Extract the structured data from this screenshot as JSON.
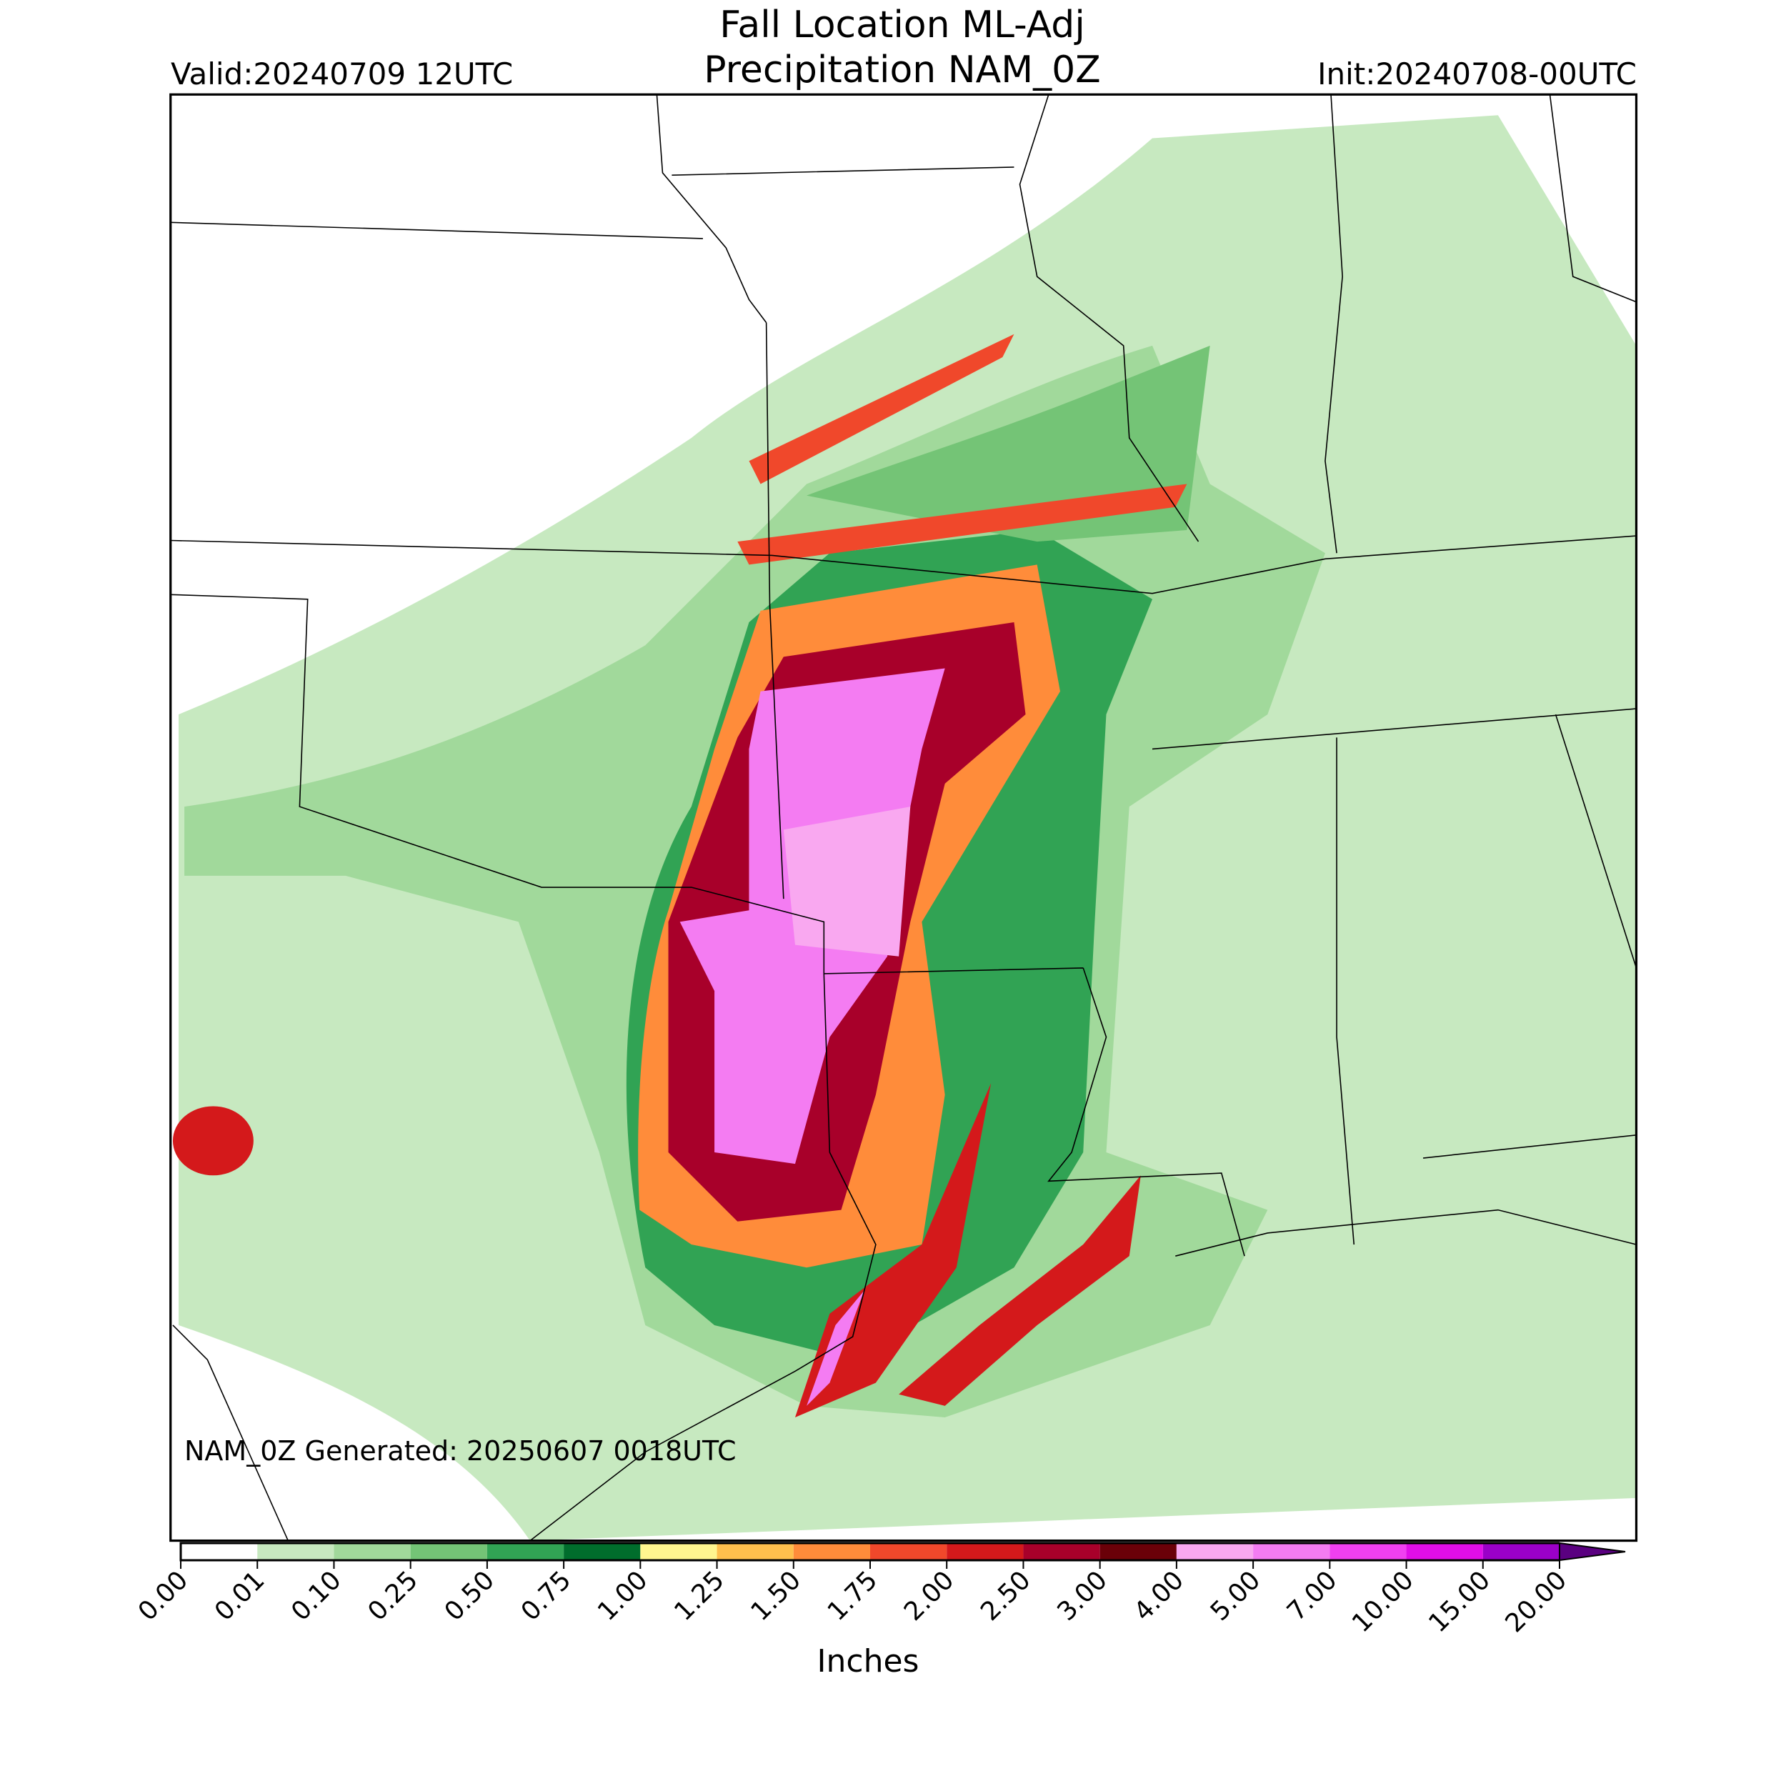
{
  "header": {
    "title": [
      "Fall Location ML-Adj",
      "Precipitation NAM_0Z"
    ],
    "valid": "Valid:20240709 12UTC",
    "init": "Init:20240708-00UTC"
  },
  "map": {
    "annotation": "NAM_0Z Generated: 20250607 0018UTC"
  },
  "colorbar": {
    "label": "Inches",
    "ticks": [
      {
        "value": 0,
        "label": "0.00"
      },
      {
        "value": 0.01,
        "label": "0.01"
      },
      {
        "value": 0.1,
        "label": "0.10"
      },
      {
        "value": 0.25,
        "label": "0.25"
      },
      {
        "value": 0.5,
        "label": "0.50"
      },
      {
        "value": 0.75,
        "label": "0.75"
      },
      {
        "value": 1,
        "label": "1.00"
      },
      {
        "value": 1.25,
        "label": "1.25"
      },
      {
        "value": 1.5,
        "label": "1.50"
      },
      {
        "value": 1.75,
        "label": "1.75"
      },
      {
        "value": 2,
        "label": "2.00"
      },
      {
        "value": 2.5,
        "label": "2.50"
      },
      {
        "value": 3,
        "label": "3.00"
      },
      {
        "value": 4,
        "label": "4.00"
      },
      {
        "value": 5,
        "label": "5.00"
      },
      {
        "value": 7,
        "label": "7.00"
      },
      {
        "value": 10,
        "label": "10.00"
      },
      {
        "value": 15,
        "label": "15.00"
      },
      {
        "value": 20,
        "label": "20.00"
      }
    ],
    "colors": [
      "#ffffff",
      "#c7e9c0",
      "#a1d99b",
      "#74c476",
      "#31a354",
      "#006d2c",
      "#fff68f",
      "#ffc04d",
      "#ff8c3a",
      "#f0482b",
      "#d4191b",
      "#a8002a",
      "#6a0008",
      "#f9a8f0",
      "#f47cf2",
      "#f040f0",
      "#e00ee8",
      "#9b00c8",
      "#5a0080"
    ]
  }
}
